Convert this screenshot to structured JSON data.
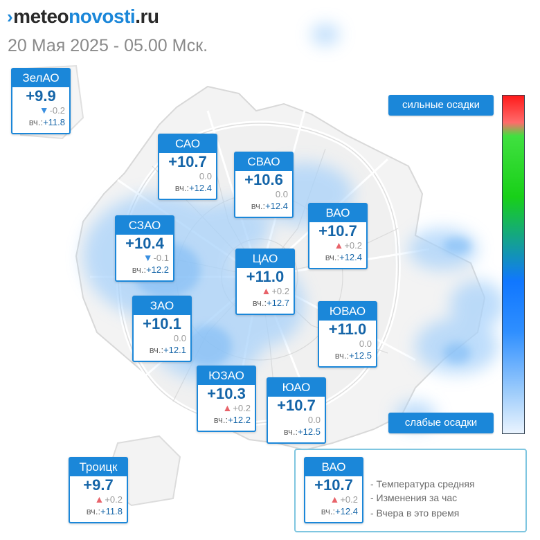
{
  "header": {
    "logo_mark": "›",
    "logo_meteo": "meteo",
    "logo_novosti": "novosti",
    "logo_domain": ".ru",
    "datetime": "20 Мая 2025 - 05.00 Мск."
  },
  "districts": [
    {
      "id": "zelao",
      "name": "ЗелАО",
      "temp": "+9.9",
      "change_dir": "down",
      "change": "-0.2",
      "yest_label": "вч.:",
      "yest": "+11.8"
    },
    {
      "id": "sao",
      "name": "САО",
      "temp": "+10.7",
      "change_dir": "none",
      "change": "0.0",
      "yest_label": "вч.:",
      "yest": "+12.4"
    },
    {
      "id": "svao",
      "name": "СВАО",
      "temp": "+10.6",
      "change_dir": "none",
      "change": "0.0",
      "yest_label": "вч.:",
      "yest": "+12.4"
    },
    {
      "id": "vao",
      "name": "ВАО",
      "temp": "+10.7",
      "change_dir": "up",
      "change": "+0.2",
      "yest_label": "вч.:",
      "yest": "+12.4"
    },
    {
      "id": "szao",
      "name": "СЗАО",
      "temp": "+10.4",
      "change_dir": "down",
      "change": "-0.1",
      "yest_label": "вч.:",
      "yest": "+12.2"
    },
    {
      "id": "cao",
      "name": "ЦАО",
      "temp": "+11.0",
      "change_dir": "up",
      "change": "+0.2",
      "yest_label": "вч.:",
      "yest": "+12.7"
    },
    {
      "id": "zao",
      "name": "ЗАО",
      "temp": "+10.1",
      "change_dir": "none",
      "change": "0.0",
      "yest_label": "вч.:",
      "yest": "+12.1"
    },
    {
      "id": "yuvao",
      "name": "ЮВАО",
      "temp": "+11.0",
      "change_dir": "none",
      "change": "0.0",
      "yest_label": "вч.:",
      "yest": "+12.5"
    },
    {
      "id": "yuzao",
      "name": "ЮЗАО",
      "temp": "+10.3",
      "change_dir": "up",
      "change": "+0.2",
      "yest_label": "вч.:",
      "yest": "+12.2"
    },
    {
      "id": "yuao",
      "name": "ЮАО",
      "temp": "+10.7",
      "change_dir": "none",
      "change": "0.0",
      "yest_label": "вч.:",
      "yest": "+12.5"
    },
    {
      "id": "troick",
      "name": "Троицк",
      "temp": "+9.7",
      "change_dir": "up",
      "change": "+0.2",
      "yest_label": "вч.:",
      "yest": "+11.8"
    }
  ],
  "precip_scale": {
    "strong_label": "сильные осадки",
    "weak_label": "слабые осадки"
  },
  "legend": {
    "sample": {
      "name": "ВАО",
      "temp": "+10.7",
      "change_dir": "up",
      "change": "+0.2",
      "yest_label": "вч.:",
      "yest": "+12.4"
    },
    "line1": "- Температура средняя",
    "line2": "- Изменения за час",
    "line3": "- Вчера в это время"
  },
  "colors": {
    "accent": "#1b87d9",
    "temp_text": "#1565a8",
    "arrow_up": "#e8636a",
    "arrow_down": "#3a8fe0"
  }
}
